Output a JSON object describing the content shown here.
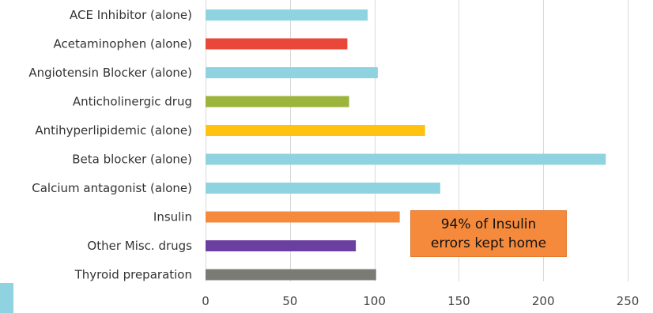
{
  "chart_data": {
    "type": "bar",
    "orientation": "horizontal",
    "categories": [
      "ACE Inhibitor (alone)",
      "Acetaminophen (alone)",
      "Angiotensin Blocker (alone)",
      "Anticholinergic drug",
      "Antihyperlipidemic (alone)",
      "Beta blocker (alone)",
      "Calcium antagonist (alone)",
      "Insulin",
      "Other Misc. drugs",
      "Thyroid preparation"
    ],
    "values": [
      96,
      84,
      102,
      85,
      130,
      237,
      139,
      115,
      89,
      101
    ],
    "colors": [
      "#8fd3e0",
      "#e8473a",
      "#8fd3e0",
      "#9cb33c",
      "#ffc20e",
      "#8fd3e0",
      "#8fd3e0",
      "#f58a3c",
      "#6a3fa0",
      "#7b7b76"
    ],
    "xlim": [
      0,
      250
    ],
    "xticks": [
      0,
      50,
      100,
      150,
      200,
      250
    ],
    "grid": true,
    "annotations": [
      {
        "lines": [
          "94% of Insulin",
          "errors kept home"
        ],
        "color": "#f58a3c"
      }
    ]
  }
}
